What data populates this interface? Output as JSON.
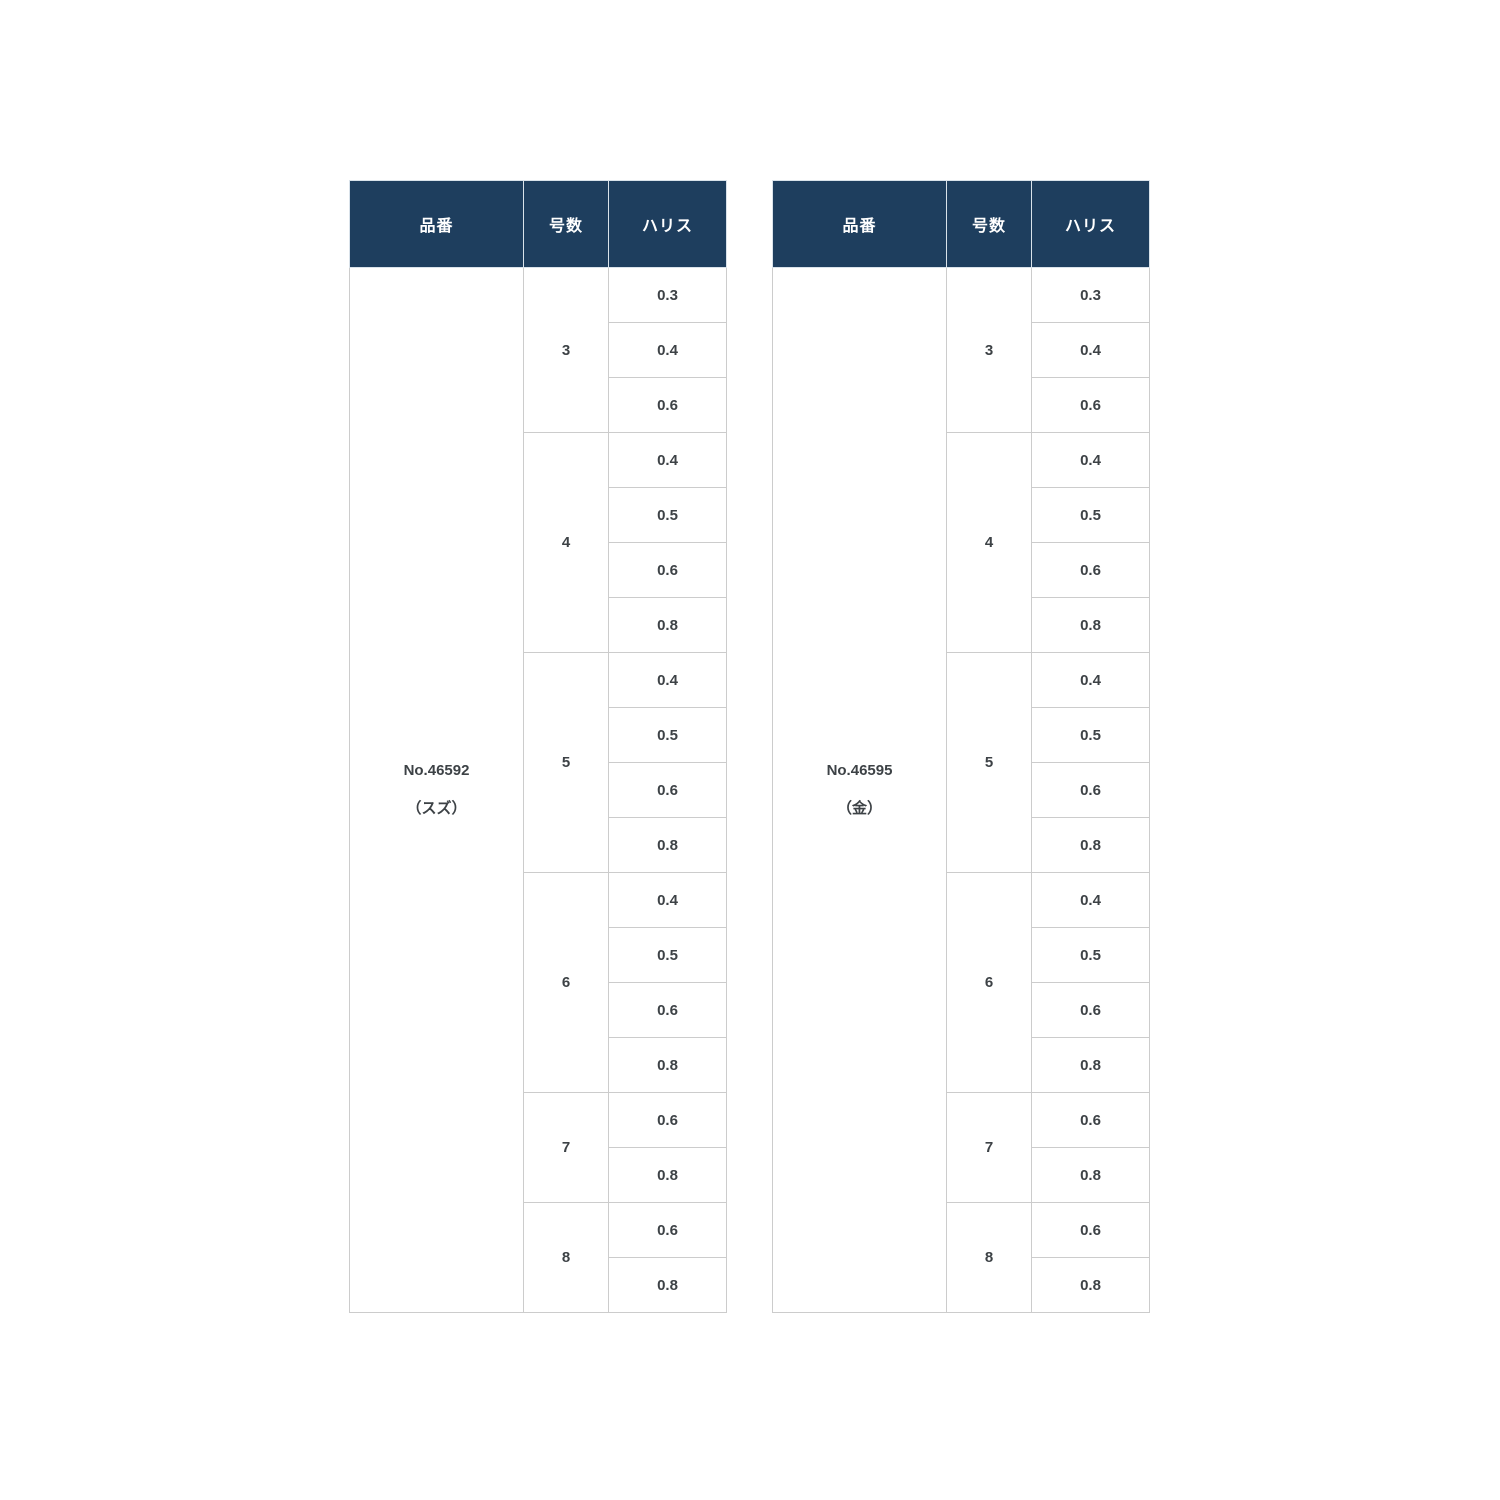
{
  "colors": {
    "header_bg": "#1e3e5e",
    "header_text": "#ffffff",
    "cell_border": "#cccccc",
    "body_text": "#3d4246",
    "page_bg": "#ffffff"
  },
  "tables": [
    {
      "headers": [
        "品番",
        "号数",
        "ハリス"
      ],
      "product": {
        "line1": "No.46592",
        "line2": "（スズ）"
      },
      "groups": [
        {
          "size": "3",
          "harisu": [
            "0.3",
            "0.4",
            "0.6"
          ]
        },
        {
          "size": "4",
          "harisu": [
            "0.4",
            "0.5",
            "0.6",
            "0.8"
          ]
        },
        {
          "size": "5",
          "harisu": [
            "0.4",
            "0.5",
            "0.6",
            "0.8"
          ]
        },
        {
          "size": "6",
          "harisu": [
            "0.4",
            "0.5",
            "0.6",
            "0.8"
          ]
        },
        {
          "size": "7",
          "harisu": [
            "0.6",
            "0.8"
          ]
        },
        {
          "size": "8",
          "harisu": [
            "0.6",
            "0.8"
          ]
        }
      ]
    },
    {
      "headers": [
        "品番",
        "号数",
        "ハリス"
      ],
      "product": {
        "line1": "No.46595",
        "line2": "（金）"
      },
      "groups": [
        {
          "size": "3",
          "harisu": [
            "0.3",
            "0.4",
            "0.6"
          ]
        },
        {
          "size": "4",
          "harisu": [
            "0.4",
            "0.5",
            "0.6",
            "0.8"
          ]
        },
        {
          "size": "5",
          "harisu": [
            "0.4",
            "0.5",
            "0.6",
            "0.8"
          ]
        },
        {
          "size": "6",
          "harisu": [
            "0.4",
            "0.5",
            "0.6",
            "0.8"
          ]
        },
        {
          "size": "7",
          "harisu": [
            "0.6",
            "0.8"
          ]
        },
        {
          "size": "8",
          "harisu": [
            "0.6",
            "0.8"
          ]
        }
      ]
    }
  ]
}
